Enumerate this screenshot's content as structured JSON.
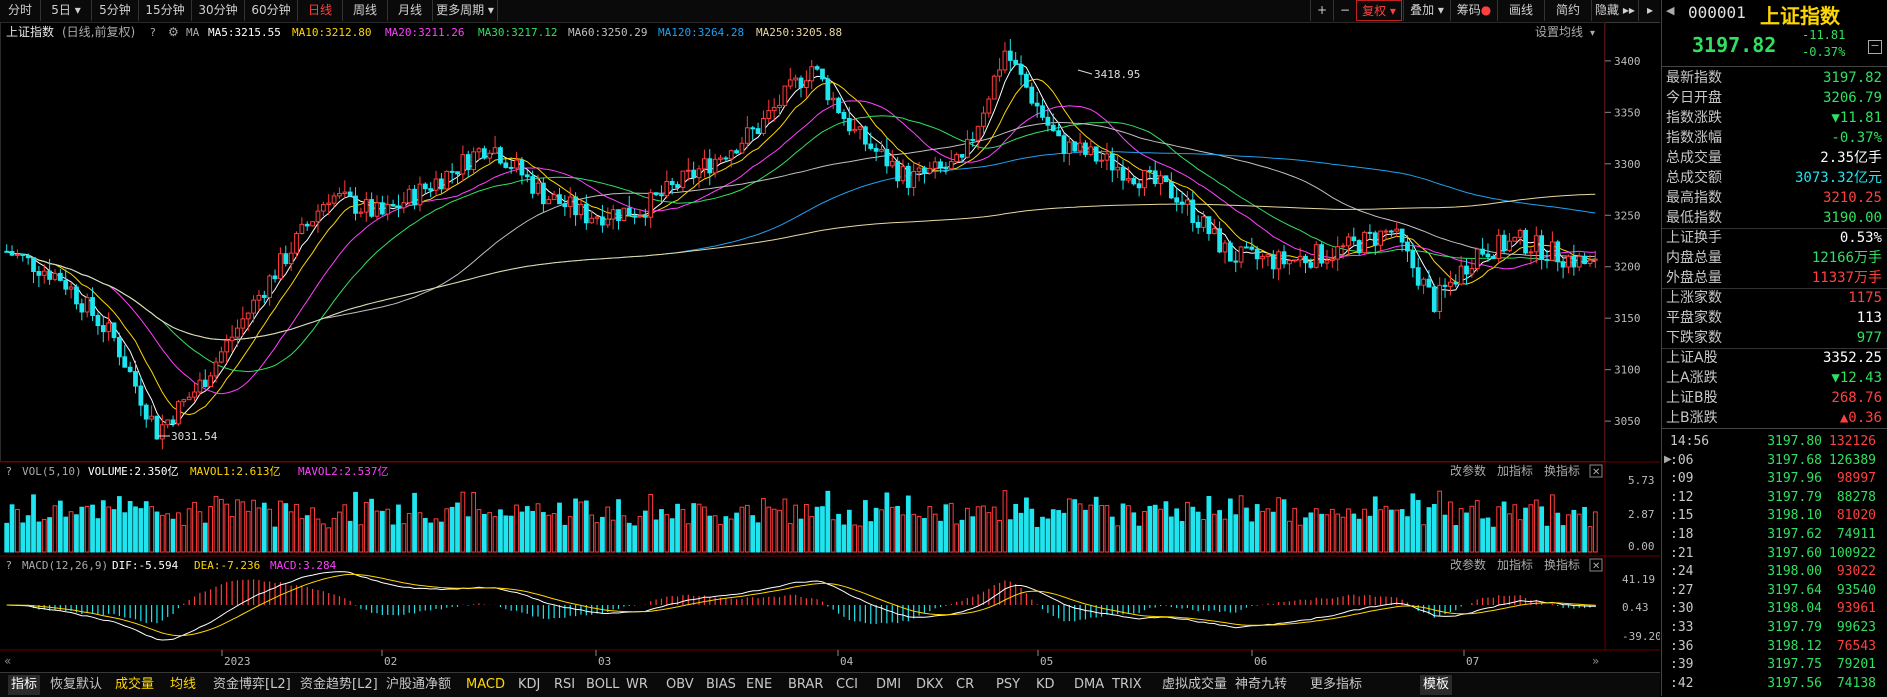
{
  "toolbar": {
    "tabs": [
      "分时",
      "5日",
      "5分钟",
      "15分钟",
      "30分钟",
      "60分钟",
      "日线",
      "周线",
      "月线",
      "更多周期"
    ],
    "active_tab": "日线",
    "right_buttons": [
      "+",
      "−",
      "复权",
      "叠加",
      "筹码",
      "画线",
      "简约",
      "隐藏"
    ]
  },
  "main_legend": {
    "title": "上证指数",
    "subtitle": "(日线,前复权)",
    "ma_label": "MA",
    "ma5": "MA5:3215.55",
    "ma10": "MA10:3212.80",
    "ma20": "MA20:3211.26",
    "ma30": "MA30:3217.12",
    "ma60": "MA60:3250.29",
    "ma120": "MA120:3264.28",
    "ma250": "MA250:3205.88",
    "settings": "设置均线"
  },
  "annotations": {
    "high": "3418.95",
    "low": "3031.54"
  },
  "vol_legend": {
    "name": "VOL(5,10)",
    "volume": "VOLUME:2.350亿",
    "mavol1": "MAVOL1:2.613亿",
    "mavol2": "MAVOL2:2.537亿"
  },
  "macd_legend": {
    "name": "MACD(12,26,9)",
    "dif": "DIF:-5.594",
    "dea": "DEA:-7.236",
    "macd": "MACD:3.284"
  },
  "panel_buttons": [
    "改参数",
    "加指标",
    "换指标"
  ],
  "chart_data": {
    "type": "candlestick",
    "price_axis": {
      "ticks": [
        3400,
        3350,
        3300,
        3250,
        3200,
        3150,
        3100,
        3050
      ],
      "range": [
        3020,
        3430
      ]
    },
    "vol_axis": {
      "ticks": [
        "5.73",
        "2.87",
        "0.00"
      ]
    },
    "macd_axis": {
      "ticks": [
        "41.19",
        "0.43",
        "-39.20"
      ]
    },
    "x_labels": [
      "2023",
      "02",
      "03",
      "04",
      "05",
      "06",
      "07"
    ],
    "high_mark": 3418.95,
    "low_mark": 3031.54
  },
  "right_panel": {
    "code": "000001",
    "name": "上证指数",
    "price": "3197.82",
    "change": "-11.81",
    "change_pct": "-0.37%",
    "rows": [
      {
        "k": "最新指数",
        "v": "3197.82",
        "c": "green"
      },
      {
        "k": "今日开盘",
        "v": "3206.79",
        "c": "green"
      },
      {
        "k": "指数涨跌",
        "v": "▼11.81",
        "c": "green"
      },
      {
        "k": "指数涨幅",
        "v": "-0.37%",
        "c": "green"
      },
      {
        "k": "总成交量",
        "v": "2.35亿手",
        "c": "white"
      },
      {
        "k": "总成交额",
        "v": "3073.32亿元",
        "c": "cyan"
      },
      {
        "k": "最高指数",
        "v": "3210.25",
        "c": "red"
      },
      {
        "k": "最低指数",
        "v": "3190.00",
        "c": "green"
      },
      {
        "k": "上证换手",
        "v": "0.53%",
        "c": "white"
      },
      {
        "k": "内盘总量",
        "v": "12166万手",
        "c": "green"
      },
      {
        "k": "外盘总量",
        "v": "11337万手",
        "c": "red"
      },
      {
        "k": "上涨家数",
        "v": "1175",
        "c": "red"
      },
      {
        "k": "平盘家数",
        "v": "113",
        "c": "white"
      },
      {
        "k": "下跌家数",
        "v": "977",
        "c": "green"
      },
      {
        "k": "上证A股",
        "v": "3352.25",
        "c": "white"
      },
      {
        "k": "上A涨跌",
        "v": "▼12.43",
        "c": "green"
      },
      {
        "k": "上证B股",
        "v": "268.76",
        "c": "red"
      },
      {
        "k": "上B涨跌",
        "v": "▲0.36",
        "c": "red"
      }
    ],
    "ticks": [
      {
        "t": "14:56",
        "p": "3197.80",
        "v": "132126",
        "vc": "red"
      },
      {
        "t": ":06",
        "p": "3197.68",
        "v": "126389",
        "vc": "green"
      },
      {
        "t": ":09",
        "p": "3197.96",
        "v": "98997",
        "vc": "red"
      },
      {
        "t": ":12",
        "p": "3197.79",
        "v": "88278",
        "vc": "green"
      },
      {
        "t": ":15",
        "p": "3198.10",
        "v": "81020",
        "vc": "red"
      },
      {
        "t": ":18",
        "p": "3197.62",
        "v": "74911",
        "vc": "green"
      },
      {
        "t": ":21",
        "p": "3197.60",
        "v": "100922",
        "vc": "green"
      },
      {
        "t": ":24",
        "p": "3198.00",
        "v": "93022",
        "vc": "red"
      },
      {
        "t": ":27",
        "p": "3197.64",
        "v": "93540",
        "vc": "green"
      },
      {
        "t": ":30",
        "p": "3198.04",
        "v": "93961",
        "vc": "red"
      },
      {
        "t": ":33",
        "p": "3197.79",
        "v": "99623",
        "vc": "green"
      },
      {
        "t": ":36",
        "p": "3198.12",
        "v": "76543",
        "vc": "red"
      },
      {
        "t": ":39",
        "p": "3197.75",
        "v": "79201",
        "vc": "green"
      },
      {
        "t": ":42",
        "p": "3197.56",
        "v": "74138",
        "vc": "green"
      }
    ]
  },
  "bottom_tabs": [
    "指标",
    "恢复默认",
    "成交量",
    "均线",
    "资金博弈[L2]",
    "资金趋势[L2]",
    "沪股通净额",
    "MACD",
    "KDJ",
    "RSI",
    "BOLL",
    "WR",
    "OBV",
    "BIAS",
    "ENE",
    "BRAR",
    "CCI",
    "DMI",
    "DKX",
    "CR",
    "PSY",
    "KD",
    "DMA",
    "TRIX",
    "虚拟成交量",
    "神奇九转",
    "更多指标",
    "模板"
  ],
  "colors": {
    "up": "#ff3c3c",
    "down": "#1fe5ef",
    "ma5": "#ffffff",
    "ma10": "#ffd700",
    "ma20": "#ff40ff",
    "ma30": "#30e060",
    "ma60": "#c0c0c0",
    "ma120": "#1fa0ef",
    "ma250": "#e8d8a0"
  }
}
